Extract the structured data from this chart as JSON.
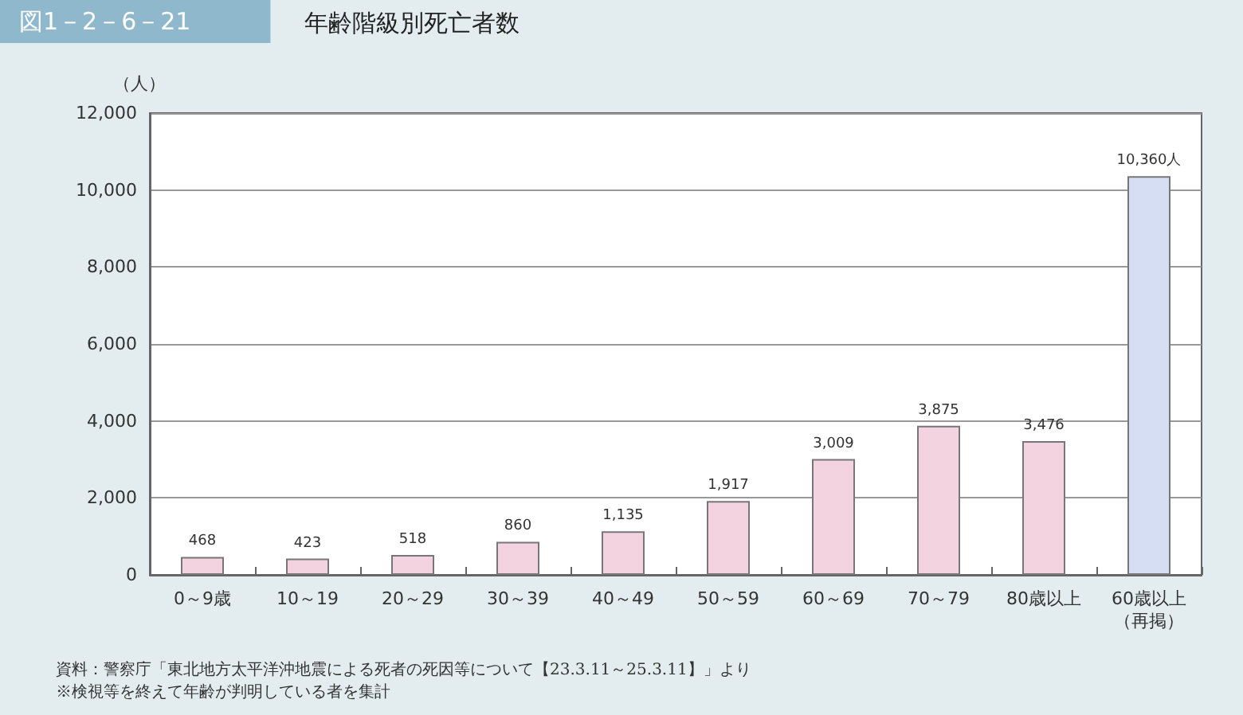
{
  "chart_data": {
    "type": "bar",
    "title": "年齢階級別死亡者数",
    "subtitle": "図1－2－6－21",
    "ylabel": "（人）",
    "categories": [
      "0～9歳",
      "10～19",
      "20～29",
      "30～39",
      "40～49",
      "50～59",
      "60～69",
      "70～79",
      "80歳以上",
      "60歳以上（再掲）"
    ],
    "values": [
      468,
      423,
      518,
      860,
      1135,
      1917,
      3009,
      3875,
      3476,
      10360
    ],
    "colors": [
      "#f2d3df",
      "#f2d3df",
      "#f2d3df",
      "#f2d3df",
      "#f2d3df",
      "#f2d3df",
      "#f2d3df",
      "#f2d3df",
      "#f2d3df",
      "#d5def3"
    ],
    "value_labels": [
      "468",
      "423",
      "518",
      "860",
      "1,135",
      "1,917",
      "3,009",
      "3,875",
      "3,476",
      "10,360人"
    ],
    "ylim": [
      0,
      12000
    ],
    "yticks": [
      0,
      {
        "value": 2000,
        "label": "2,000"
      },
      {
        "value": 4000,
        "label": "4,000"
      },
      {
        "value": 6000,
        "label": "6,000"
      },
      {
        "value": 8000,
        "label": "8,000"
      },
      {
        "value": 10000,
        "label": "10,000"
      },
      {
        "value": 12000,
        "label": "12,000"
      }
    ],
    "grid": "y",
    "annotations": [
      "資料：警察庁「東北地方太平洋沖地震による死者の死因等について【23.3.11～25.3.11】」より",
      "※検視等を終えて年齢が判明している者を集計"
    ]
  }
}
